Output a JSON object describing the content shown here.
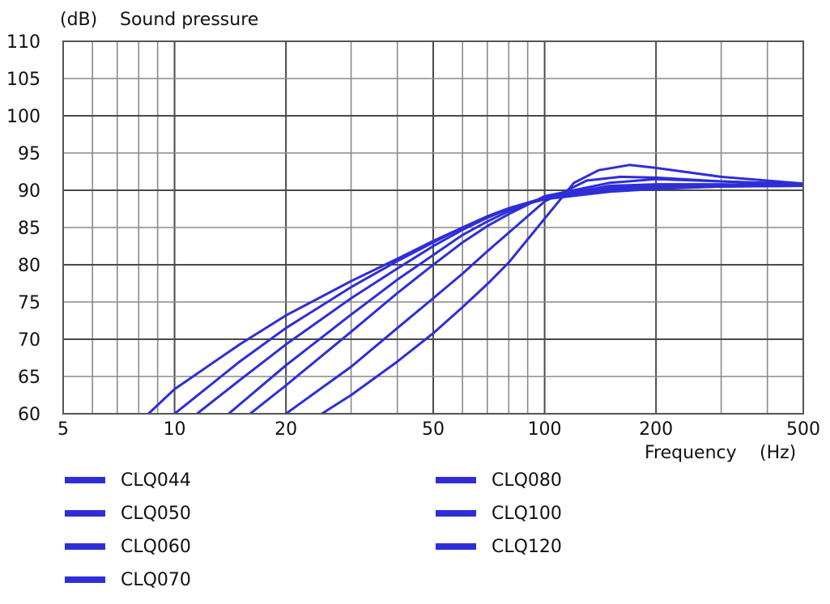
{
  "colors": {
    "series": "#2e2ed8",
    "grid": "#8a8a8a",
    "frame": "#555555",
    "background": "#ffffff"
  },
  "chart_data": {
    "type": "line",
    "title": "",
    "ylabel_unit": "(dB)",
    "ylabel": "Sound pressure",
    "xlabel": "Frequency",
    "xlabel_unit": "(Hz)",
    "xscale": "log",
    "xlim": [
      5,
      500
    ],
    "ylim": [
      60,
      110
    ],
    "x_ticks": [
      5,
      10,
      20,
      50,
      100,
      200,
      500
    ],
    "x_tick_labels": [
      "5",
      "10",
      "20",
      "50",
      "100",
      "200",
      "500"
    ],
    "y_ticks": [
      60,
      65,
      70,
      75,
      80,
      85,
      90,
      95,
      100,
      105,
      110
    ],
    "y_tick_labels": [
      "60",
      "65",
      "70",
      "75",
      "80",
      "85",
      "90",
      "95",
      "100",
      "105",
      "110"
    ],
    "grid": true,
    "legend_position": "bottom",
    "series": [
      {
        "name": "CLQ044",
        "x": [
          8.5,
          10,
          15,
          20,
          30,
          40,
          50,
          60,
          70,
          80,
          100,
          150,
          200,
          300,
          500
        ],
        "y": [
          60,
          63.3,
          69.3,
          73.2,
          77.8,
          80.8,
          83.2,
          85,
          86.5,
          87.5,
          88.8,
          89.8,
          90.2,
          90.5,
          90.6
        ]
      },
      {
        "name": "CLQ050",
        "x": [
          10,
          15,
          20,
          30,
          40,
          50,
          60,
          70,
          80,
          100,
          150,
          200,
          300,
          500
        ],
        "y": [
          60,
          67,
          71.5,
          77,
          80.5,
          83,
          85,
          86.5,
          87.6,
          89,
          90,
          90.3,
          90.5,
          90.6
        ]
      },
      {
        "name": "CLQ060",
        "x": [
          11.5,
          15,
          20,
          30,
          40,
          50,
          60,
          70,
          80,
          100,
          150,
          200,
          300,
          500
        ],
        "y": [
          60,
          64.5,
          69.3,
          75.5,
          79.5,
          82.5,
          84.7,
          86.3,
          87.5,
          89,
          90.3,
          90.5,
          90.6,
          90.7
        ]
      },
      {
        "name": "CLQ070",
        "x": [
          14,
          20,
          30,
          40,
          50,
          60,
          70,
          80,
          100,
          150,
          200,
          300,
          500
        ],
        "y": [
          60,
          66.5,
          73.3,
          78,
          81.3,
          84,
          85.8,
          87.2,
          89,
          90.6,
          90.8,
          90.8,
          90.7
        ]
      },
      {
        "name": "CLQ080",
        "x": [
          16,
          20,
          30,
          40,
          50,
          60,
          70,
          80,
          100,
          150,
          200,
          300,
          500
        ],
        "y": [
          60,
          63.8,
          71,
          76.2,
          80,
          83,
          85.2,
          86.8,
          89.2,
          91,
          91.5,
          91.2,
          90.8
        ]
      },
      {
        "name": "CLQ100",
        "x": [
          20,
          30,
          40,
          50,
          60,
          70,
          80,
          100,
          130,
          160,
          200,
          300,
          500
        ],
        "y": [
          60,
          66.3,
          71.5,
          75.5,
          78.8,
          81.8,
          84.3,
          88.5,
          91.3,
          91.8,
          91.7,
          91.2,
          90.8
        ]
      },
      {
        "name": "CLQ120",
        "x": [
          25,
          30,
          40,
          50,
          60,
          70,
          80,
          100,
          120,
          140,
          170,
          200,
          300,
          500
        ],
        "y": [
          60,
          62.5,
          67,
          70.8,
          74.3,
          77.4,
          80.3,
          86.2,
          91,
          92.7,
          93.4,
          93,
          91.8,
          90.9
        ]
      }
    ]
  },
  "legend": {
    "items": [
      "CLQ044",
      "CLQ050",
      "CLQ060",
      "CLQ070",
      "CLQ080",
      "CLQ100",
      "CLQ120"
    ]
  }
}
